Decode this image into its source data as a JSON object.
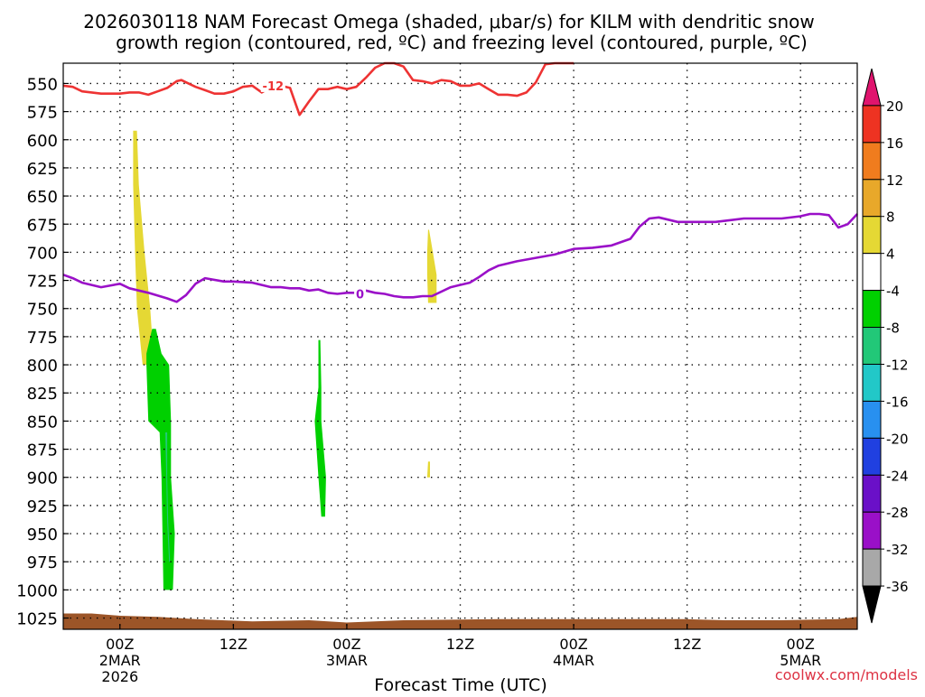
{
  "chart_data": {
    "type": "heatmap",
    "title_lines": [
      "2026030118 NAM Forecast Omega (shaded, μbar/s) for KILM with dendritic snow",
      "growth region (contoured, red, ºC) and freezing level (contoured, purple, ºC)"
    ],
    "xlabel": "Forecast Time (UTC)",
    "credit": "coolwx.com/models",
    "x_ticks": [
      {
        "hour": 0,
        "lines": [
          "00Z",
          "2MAR",
          "2026"
        ]
      },
      {
        "hour": 12,
        "lines": [
          "12Z"
        ]
      },
      {
        "hour": 24,
        "lines": [
          "00Z",
          "3MAR"
        ]
      },
      {
        "hour": 36,
        "lines": [
          "12Z"
        ]
      },
      {
        "hour": 48,
        "lines": [
          "00Z",
          "4MAR"
        ]
      },
      {
        "hour": 60,
        "lines": [
          "12Z"
        ]
      },
      {
        "hour": 72,
        "lines": [
          "00Z",
          "5MAR"
        ]
      }
    ],
    "xlim": [
      -6,
      78
    ],
    "y_ticks": [
      550,
      575,
      600,
      625,
      650,
      675,
      700,
      725,
      750,
      775,
      800,
      825,
      850,
      875,
      900,
      925,
      950,
      975,
      1000,
      1025
    ],
    "ylim": [
      532,
      1035
    ],
    "y_inverted": true,
    "grid": true,
    "colorbar": {
      "labels": [
        "20",
        "16",
        "12",
        "8",
        "4",
        "-4",
        "-8",
        "-12",
        "-16",
        "-20",
        "-24",
        "-28",
        "-32",
        "-36"
      ],
      "colors": [
        "#e0146e",
        "#ee3322",
        "#f07c1e",
        "#e8a82a",
        "#e5d834",
        "#ffffff",
        "#00d000",
        "#22c878",
        "#22c8c8",
        "#2890f0",
        "#2040e0",
        "#6a10c8",
        "#9a10c8",
        "#a8a8a8",
        "#000000"
      ],
      "extend": "both"
    },
    "shaded_regions": [
      {
        "value_range": "4 to 8",
        "color": "#e5d834",
        "left": [
          [
            592,
            1.4
          ],
          [
            640,
            1.4
          ],
          [
            700,
            1.6
          ],
          [
            750,
            1.8
          ],
          [
            800,
            2.4
          ]
        ],
        "right": [
          [
            592,
            1.8
          ],
          [
            640,
            2.0
          ],
          [
            700,
            2.6
          ],
          [
            750,
            3.2
          ],
          [
            800,
            3.6
          ]
        ]
      },
      {
        "value_range": "4 to 8",
        "color": "#e5d834",
        "left": [
          [
            680,
            32.6
          ],
          [
            700,
            32.5
          ],
          [
            720,
            32.5
          ],
          [
            745,
            32.6
          ]
        ],
        "right": [
          [
            680,
            32.7
          ],
          [
            700,
            33.1
          ],
          [
            720,
            33.5
          ],
          [
            745,
            33.5
          ]
        ]
      },
      {
        "value_range": "4 to 8",
        "color": "#e5d834",
        "left": [
          [
            886,
            32.6
          ],
          [
            900,
            32.5
          ]
        ],
        "right": [
          [
            886,
            32.8
          ],
          [
            900,
            32.8
          ]
        ]
      },
      {
        "value_range": "-4 to -8",
        "color": "#00d000",
        "left": [
          [
            768,
            3.4
          ],
          [
            790,
            2.8
          ],
          [
            800,
            2.8
          ],
          [
            850,
            3.0
          ],
          [
            860,
            4.2
          ],
          [
            900,
            4.4
          ],
          [
            950,
            4.5
          ],
          [
            1000,
            4.6
          ]
        ],
        "right": [
          [
            768,
            3.8
          ],
          [
            790,
            4.4
          ],
          [
            800,
            5.2
          ],
          [
            850,
            5.4
          ],
          [
            900,
            5.4
          ],
          [
            950,
            5.8
          ],
          [
            1000,
            5.6
          ]
        ]
      },
      {
        "value_range": "-8 to -12",
        "color": "#22c878",
        "left": [
          [
            860,
            4.8
          ],
          [
            900,
            4.9
          ],
          [
            940,
            5.0
          ],
          [
            975,
            5.2
          ]
        ],
        "right": [
          [
            860,
            5.0
          ],
          [
            900,
            5.0
          ],
          [
            940,
            5.1
          ],
          [
            975,
            5.3
          ]
        ]
      },
      {
        "value_range": "-4 to -8",
        "color": "#00d000",
        "left": [
          [
            778,
            21.0
          ],
          [
            820,
            21.0
          ],
          [
            850,
            20.6
          ],
          [
            900,
            21.0
          ],
          [
            935,
            21.3
          ]
        ],
        "right": [
          [
            778,
            21.2
          ],
          [
            820,
            21.3
          ],
          [
            850,
            21.3
          ],
          [
            900,
            21.8
          ],
          [
            935,
            21.7
          ]
        ]
      }
    ],
    "series": [
      {
        "name": "",
        "label": "-12",
        "color": "#ee3333",
        "label_at": [
          16.2,
          552
        ],
        "points": [
          [
            -6,
            552
          ],
          [
            -5,
            553
          ],
          [
            -4,
            557
          ],
          [
            -2,
            559
          ],
          [
            0,
            559
          ],
          [
            1,
            558
          ],
          [
            2,
            558
          ],
          [
            3,
            560
          ],
          [
            4,
            557
          ],
          [
            5,
            554
          ],
          [
            6,
            548
          ],
          [
            6.5,
            547
          ],
          [
            7,
            549
          ],
          [
            8,
            553
          ],
          [
            9,
            556
          ],
          [
            10,
            559
          ],
          [
            11,
            559
          ],
          [
            12,
            557
          ],
          [
            13,
            553
          ],
          [
            14,
            552
          ],
          [
            15,
            558
          ],
          [
            16,
            553
          ],
          [
            17,
            552
          ],
          [
            18,
            554
          ],
          [
            19,
            578
          ],
          [
            20,
            566
          ],
          [
            21,
            555
          ],
          [
            22,
            555
          ],
          [
            23,
            553
          ],
          [
            24,
            555
          ],
          [
            25,
            553
          ],
          [
            26,
            545
          ],
          [
            27,
            536
          ],
          [
            28,
            530
          ],
          [
            29,
            531
          ],
          [
            30,
            535
          ],
          [
            31,
            547
          ],
          [
            32,
            548
          ],
          [
            33,
            550
          ],
          [
            34,
            547
          ],
          [
            35,
            548
          ],
          [
            36,
            552
          ],
          [
            37,
            552
          ],
          [
            38,
            550
          ],
          [
            39,
            555
          ],
          [
            40,
            560
          ],
          [
            41,
            560
          ],
          [
            42,
            561
          ],
          [
            43,
            558
          ],
          [
            44,
            549
          ],
          [
            45,
            533
          ],
          [
            46,
            523
          ],
          [
            47,
            521
          ],
          [
            48,
            521
          ]
        ]
      },
      {
        "name": "",
        "label": "0",
        "color": "#9a10c8",
        "label_at": [
          25.4,
          737
        ],
        "points": [
          [
            -6,
            720
          ],
          [
            -5,
            723
          ],
          [
            -4,
            727
          ],
          [
            -2,
            731
          ],
          [
            0,
            728
          ],
          [
            1,
            732
          ],
          [
            2,
            734
          ],
          [
            3,
            736
          ],
          [
            5,
            741
          ],
          [
            6,
            744
          ],
          [
            7,
            738
          ],
          [
            8,
            728
          ],
          [
            9,
            723
          ],
          [
            11,
            726
          ],
          [
            12,
            726
          ],
          [
            14,
            727
          ],
          [
            16,
            731
          ],
          [
            17,
            731
          ],
          [
            18,
            732
          ],
          [
            19,
            732
          ],
          [
            20,
            734
          ],
          [
            21,
            733
          ],
          [
            22,
            736
          ],
          [
            23,
            737
          ],
          [
            24,
            736
          ],
          [
            25,
            736
          ],
          [
            26,
            734
          ],
          [
            27,
            736
          ],
          [
            28,
            737
          ],
          [
            29,
            739
          ],
          [
            30,
            740
          ],
          [
            31,
            740
          ],
          [
            32,
            739
          ],
          [
            33,
            739
          ],
          [
            35,
            731
          ],
          [
            37,
            727
          ],
          [
            38,
            722
          ],
          [
            39,
            716
          ],
          [
            40,
            712
          ],
          [
            42,
            708
          ],
          [
            44,
            705
          ],
          [
            46,
            702
          ],
          [
            48,
            697
          ],
          [
            50,
            696
          ],
          [
            52,
            694
          ],
          [
            54,
            688
          ],
          [
            55,
            677
          ],
          [
            56,
            670
          ],
          [
            57,
            669
          ],
          [
            58,
            671
          ],
          [
            59,
            673
          ],
          [
            60,
            673
          ],
          [
            63,
            673
          ],
          [
            65,
            671
          ],
          [
            66,
            670
          ],
          [
            70,
            670
          ],
          [
            72,
            668
          ],
          [
            73,
            666
          ],
          [
            74,
            666
          ],
          [
            75,
            667
          ],
          [
            76,
            678
          ],
          [
            77,
            675
          ],
          [
            78,
            666
          ]
        ]
      }
    ],
    "ground_surface": {
      "color": "#9c5528",
      "top": [
        [
          -6,
          1021
        ],
        [
          -3,
          1021
        ],
        [
          0,
          1023
        ],
        [
          4,
          1024
        ],
        [
          8,
          1026
        ],
        [
          14,
          1028
        ],
        [
          20,
          1027
        ],
        [
          24,
          1029
        ],
        [
          30,
          1027
        ],
        [
          40,
          1026
        ],
        [
          48,
          1026
        ],
        [
          56,
          1026
        ],
        [
          60,
          1026
        ],
        [
          64,
          1027
        ],
        [
          70,
          1027
        ],
        [
          76,
          1026
        ],
        [
          78,
          1024
        ]
      ]
    }
  }
}
